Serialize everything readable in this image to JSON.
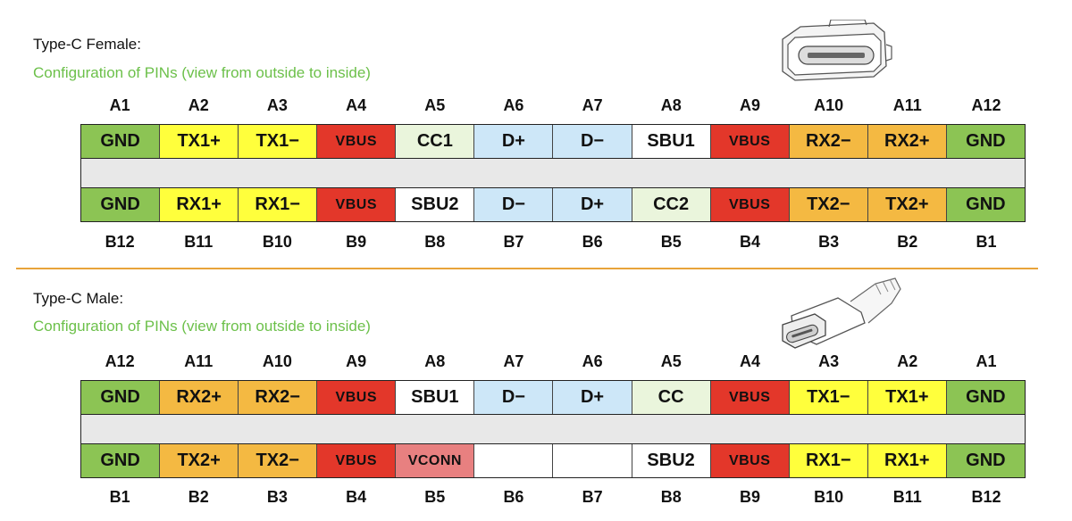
{
  "female": {
    "title": "Type-C Female:",
    "subtitle": "Configuration of PINs (view from outside to inside)",
    "top_labels": [
      "A1",
      "A2",
      "A3",
      "A4",
      "A5",
      "A6",
      "A7",
      "A8",
      "A9",
      "A10",
      "A11",
      "A12"
    ],
    "top_pins": [
      {
        "label": "GND",
        "color": "#8cc454"
      },
      {
        "label": "TX1+",
        "color": "#ffff3c"
      },
      {
        "label": "TX1−",
        "color": "#ffff3c"
      },
      {
        "label": "VBUS",
        "color": "#e3372a",
        "vbus": true
      },
      {
        "label": "CC1",
        "color": "#eaf5dc"
      },
      {
        "label": "D+",
        "color": "#cde7f8"
      },
      {
        "label": "D−",
        "color": "#cde7f8"
      },
      {
        "label": "SBU1",
        "color": "#ffffff"
      },
      {
        "label": "VBUS",
        "color": "#e3372a",
        "vbus": true
      },
      {
        "label": "RX2−",
        "color": "#f4b942"
      },
      {
        "label": "RX2+",
        "color": "#f4b942"
      },
      {
        "label": "GND",
        "color": "#8cc454"
      }
    ],
    "bottom_pins": [
      {
        "label": "GND",
        "color": "#8cc454"
      },
      {
        "label": "RX1+",
        "color": "#ffff3c"
      },
      {
        "label": "RX1−",
        "color": "#ffff3c"
      },
      {
        "label": "VBUS",
        "color": "#e3372a",
        "vbus": true
      },
      {
        "label": "SBU2",
        "color": "#ffffff"
      },
      {
        "label": "D−",
        "color": "#cde7f8"
      },
      {
        "label": "D+",
        "color": "#cde7f8"
      },
      {
        "label": "CC2",
        "color": "#eaf5dc"
      },
      {
        "label": "VBUS",
        "color": "#e3372a",
        "vbus": true
      },
      {
        "label": "TX2−",
        "color": "#f4b942"
      },
      {
        "label": "TX2+",
        "color": "#f4b942"
      },
      {
        "label": "GND",
        "color": "#8cc454"
      }
    ],
    "bottom_labels": [
      "B12",
      "B11",
      "B10",
      "B9",
      "B8",
      "B7",
      "B6",
      "B5",
      "B4",
      "B3",
      "B2",
      "B1"
    ]
  },
  "male": {
    "title": "Type-C Male:",
    "subtitle": "Configuration of PINs (view from outside to inside)",
    "top_labels": [
      "A12",
      "A11",
      "A10",
      "A9",
      "A8",
      "A7",
      "A6",
      "A5",
      "A4",
      "A3",
      "A2",
      "A1"
    ],
    "top_pins": [
      {
        "label": "GND",
        "color": "#8cc454"
      },
      {
        "label": "RX2+",
        "color": "#f4b942"
      },
      {
        "label": "RX2−",
        "color": "#f4b942"
      },
      {
        "label": "VBUS",
        "color": "#e3372a",
        "vbus": true
      },
      {
        "label": "SBU1",
        "color": "#ffffff"
      },
      {
        "label": "D−",
        "color": "#cde7f8"
      },
      {
        "label": "D+",
        "color": "#cde7f8"
      },
      {
        "label": "CC",
        "color": "#eaf5dc"
      },
      {
        "label": "VBUS",
        "color": "#e3372a",
        "vbus": true
      },
      {
        "label": "TX1−",
        "color": "#ffff3c"
      },
      {
        "label": "TX1+",
        "color": "#ffff3c"
      },
      {
        "label": "GND",
        "color": "#8cc454"
      }
    ],
    "bottom_pins": [
      {
        "label": "GND",
        "color": "#8cc454"
      },
      {
        "label": "TX2+",
        "color": "#f4b942"
      },
      {
        "label": "TX2−",
        "color": "#f4b942"
      },
      {
        "label": "VBUS",
        "color": "#e3372a",
        "vbus": true
      },
      {
        "label": "VCONN",
        "color": "#e88080",
        "vbus": true
      },
      {
        "label": "",
        "color": "#ffffff"
      },
      {
        "label": "",
        "color": "#ffffff"
      },
      {
        "label": "SBU2",
        "color": "#ffffff"
      },
      {
        "label": "VBUS",
        "color": "#e3372a",
        "vbus": true
      },
      {
        "label": "RX1−",
        "color": "#ffff3c"
      },
      {
        "label": "RX1+",
        "color": "#ffff3c"
      },
      {
        "label": "GND",
        "color": "#8cc454"
      }
    ],
    "bottom_labels": [
      "B1",
      "B2",
      "B3",
      "B4",
      "B5",
      "B6",
      "B7",
      "B8",
      "B9",
      "B10",
      "B11",
      "B12"
    ]
  },
  "colors": {
    "divider": "#e8a33a",
    "subtitle": "#6cc04a",
    "gap": "#e8e8e8"
  },
  "icons": {
    "female": "usb-c-female-receptacle-icon",
    "male": "usb-c-male-plug-icon"
  }
}
